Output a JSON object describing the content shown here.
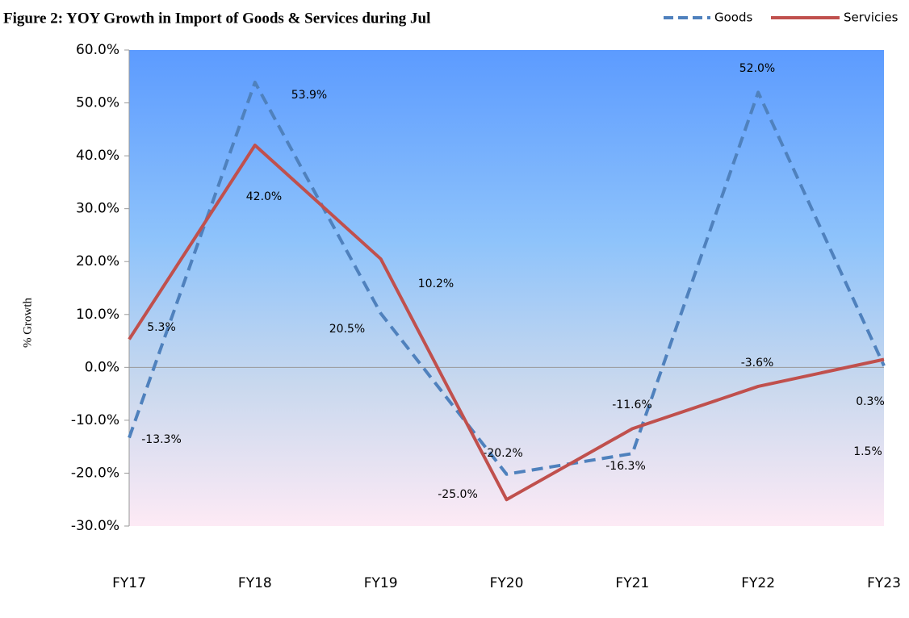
{
  "chart_data": {
    "type": "line",
    "title": "Figure 2: YOY Growth in Import of Goods & Services  during Jul",
    "y_label": "% Growth",
    "categories": [
      "FY17",
      "FY18",
      "FY19",
      "FY20",
      "FY21",
      "FY22",
      "FY23"
    ],
    "series": [
      {
        "name": "Goods",
        "color": "#4f81bd",
        "dashed": true,
        "values": [
          -13.3,
          53.9,
          10.2,
          -20.2,
          -16.3,
          52.0,
          0.3
        ],
        "value_labels": [
          "-13.3%",
          "53.9%",
          "10.2%",
          "-20.2%",
          "-16.3%",
          "52.0%",
          "0.3%"
        ]
      },
      {
        "name": "Servicies",
        "color": "#c0504d",
        "dashed": false,
        "values": [
          5.3,
          42.0,
          20.5,
          -25.0,
          -11.6,
          -3.6,
          1.5
        ],
        "value_labels": [
          "5.3%",
          "42.0%",
          "20.5%",
          "-25.0%",
          "-11.6%",
          "-3.6%",
          "1.5%"
        ]
      }
    ],
    "ylim": [
      -30,
      60
    ],
    "yticks": [
      {
        "value": -30,
        "label": "-30.0%"
      },
      {
        "value": -20,
        "label": "-20.0%"
      },
      {
        "value": -10,
        "label": "-10.0%"
      },
      {
        "value": 0,
        "label": "0.0%"
      },
      {
        "value": 10,
        "label": "10.0%"
      },
      {
        "value": 20,
        "label": "20.0%"
      },
      {
        "value": 30,
        "label": "30.0%"
      },
      {
        "value": 40,
        "label": "40.0%"
      },
      {
        "value": 50,
        "label": "50.0%"
      },
      {
        "value": 60,
        "label": "60.0%"
      }
    ],
    "legend": "top-right"
  }
}
